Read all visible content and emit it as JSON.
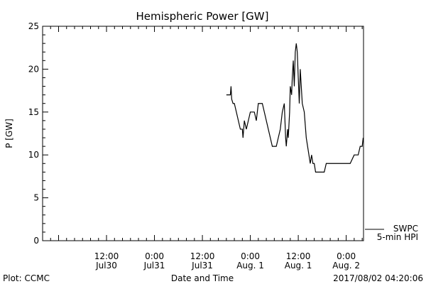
{
  "chart_data": {
    "type": "line",
    "title": "Hemispheric Power [GW]",
    "ylabel": "P [GW]",
    "xlabel": "Date and Time",
    "ylim": [
      0,
      25
    ],
    "yticks": [
      "0",
      "5",
      "10",
      "15",
      "20",
      "25"
    ],
    "xlim": [
      "2017-07-29 20:00",
      "2017-08-02 04:20"
    ],
    "xticks": [
      {
        "t": "2017-07-30 12:00",
        "time": "12:00",
        "date": "Jul30"
      },
      {
        "t": "2017-07-31 00:00",
        "time": "0:00",
        "date": "Jul31"
      },
      {
        "t": "2017-07-31 12:00",
        "time": "12:00",
        "date": "Jul31"
      },
      {
        "t": "2017-08-01 00:00",
        "time": "0:00",
        "date": "Aug. 1"
      },
      {
        "t": "2017-08-01 12:00",
        "time": "12:00",
        "date": "Aug. 1"
      },
      {
        "t": "2017-08-02 00:00",
        "time": "0:00",
        "date": "Aug. 2"
      }
    ],
    "series": [
      {
        "name": "5-min HPI",
        "label_line1": "SWPC",
        "label_line2": "5-min HPI",
        "color": "#000000",
        "x": [
          "2017-07-31 18:00",
          "2017-07-31 19:00",
          "2017-07-31 19:10",
          "2017-07-31 19:20",
          "2017-07-31 19:40",
          "2017-07-31 20:00",
          "2017-07-31 20:30",
          "2017-07-31 21:00",
          "2017-07-31 21:30",
          "2017-07-31 22:00",
          "2017-07-31 22:10",
          "2017-07-31 22:30",
          "2017-07-31 23:00",
          "2017-08-01 00:00",
          "2017-08-01 00:30",
          "2017-08-01 01:00",
          "2017-08-01 01:30",
          "2017-08-01 02:00",
          "2017-08-01 02:30",
          "2017-08-01 03:00",
          "2017-08-01 03:30",
          "2017-08-01 04:00",
          "2017-08-01 04:30",
          "2017-08-01 05:00",
          "2017-08-01 05:30",
          "2017-08-01 06:00",
          "2017-08-01 06:30",
          "2017-08-01 07:00",
          "2017-08-01 07:30",
          "2017-08-01 08:00",
          "2017-08-01 08:30",
          "2017-08-01 08:50",
          "2017-08-01 09:00",
          "2017-08-01 09:20",
          "2017-08-01 09:30",
          "2017-08-01 09:50",
          "2017-08-01 10:00",
          "2017-08-01 10:20",
          "2017-08-01 10:30",
          "2017-08-01 10:45",
          "2017-08-01 11:00",
          "2017-08-01 11:15",
          "2017-08-01 11:30",
          "2017-08-01 11:45",
          "2017-08-01 12:00",
          "2017-08-01 12:15",
          "2017-08-01 12:30",
          "2017-08-01 12:45",
          "2017-08-01 13:00",
          "2017-08-01 13:30",
          "2017-08-01 14:00",
          "2017-08-01 14:20",
          "2017-08-01 14:40",
          "2017-08-01 15:00",
          "2017-08-01 15:20",
          "2017-08-01 15:40",
          "2017-08-01 16:00",
          "2017-08-01 16:20",
          "2017-08-01 16:40",
          "2017-08-01 17:00",
          "2017-08-01 17:30",
          "2017-08-01 18:00",
          "2017-08-01 18:30",
          "2017-08-01 19:00",
          "2017-08-01 19:30",
          "2017-08-01 20:00",
          "2017-08-01 21:00",
          "2017-08-01 22:00",
          "2017-08-01 23:00",
          "2017-08-02 00:00",
          "2017-08-02 01:00",
          "2017-08-02 02:00",
          "2017-08-02 03:00",
          "2017-08-02 03:30",
          "2017-08-02 04:00",
          "2017-08-02 04:15"
        ],
        "values": [
          17,
          17,
          18,
          16.5,
          16,
          16,
          15,
          14,
          13,
          13,
          12,
          14,
          13,
          15,
          15,
          15,
          14,
          16,
          16,
          16,
          15,
          14,
          13,
          12,
          11,
          11,
          11,
          12,
          13,
          15,
          16,
          12,
          11,
          13,
          12,
          15,
          18,
          17,
          19,
          21,
          18,
          22,
          23,
          22,
          19,
          16,
          20,
          18,
          16,
          15,
          12,
          11,
          10,
          9,
          10,
          9,
          9,
          8,
          8,
          8,
          8,
          8,
          8,
          9,
          9,
          9,
          9,
          9,
          9,
          9,
          9,
          10,
          10,
          11,
          11,
          12
        ]
      }
    ],
    "grid": false,
    "legend": "bottom-right"
  },
  "footer": {
    "left": "Plot: CCMC",
    "right": "2017/08/02 04:20:06"
  }
}
